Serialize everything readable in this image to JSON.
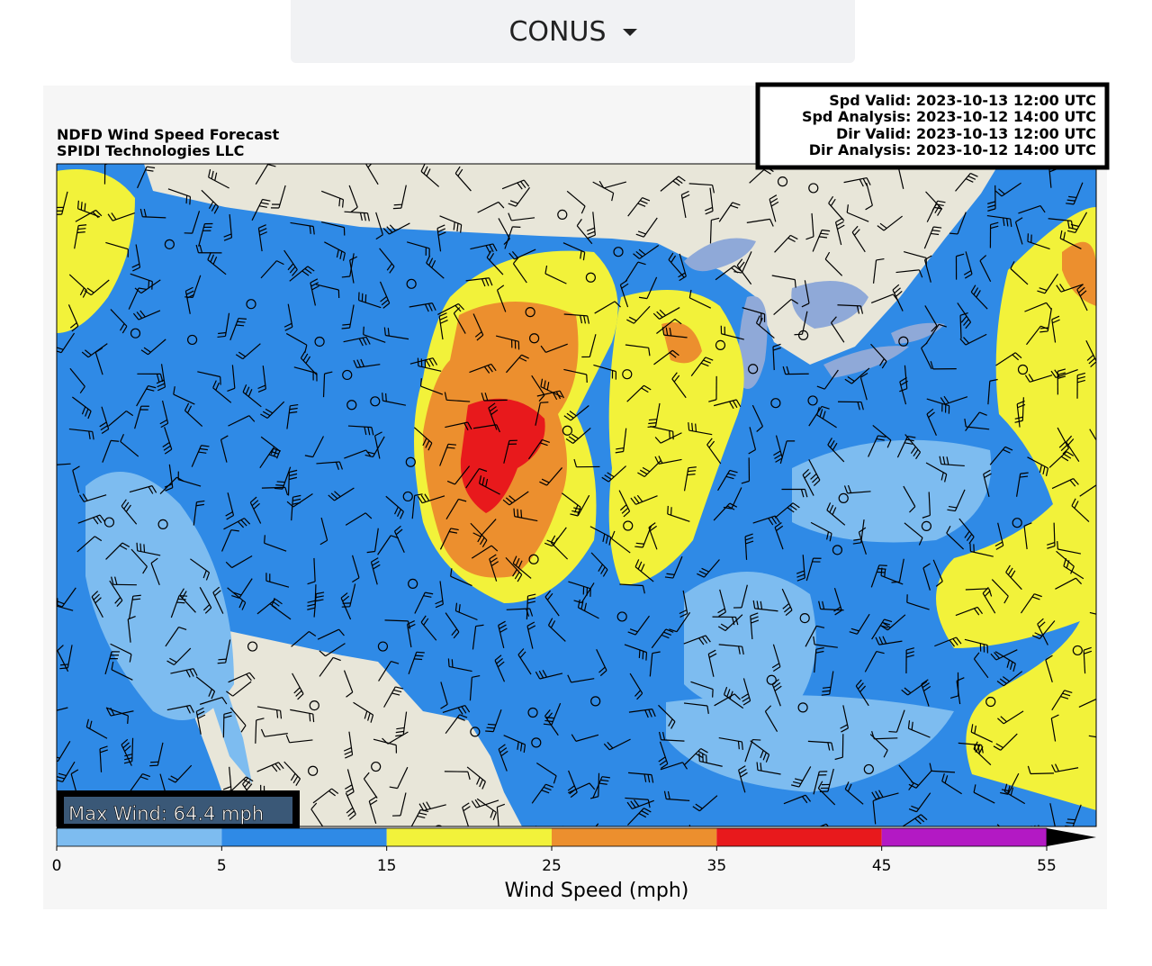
{
  "dropdown": {
    "label": "CONUS"
  },
  "map": {
    "title": [
      "NDFD Wind Speed Forecast",
      "SPIDI Technologies LLC"
    ],
    "valid_info": [
      "Spd Valid: 2023-10-13 12:00 UTC",
      "Spd Analysis: 2023-10-12 14:00 UTC",
      "Dir Valid: 2023-10-13 12:00 UTC",
      "Dir Analysis: 2023-10-12 14:00 UTC"
    ],
    "max_wind": "Max Wind: 64.4 mph"
  },
  "colorbar": {
    "ticks": [
      0,
      5,
      15,
      25,
      35,
      45,
      55
    ],
    "colors": [
      "#7dbcf0",
      "#2f8ae6",
      "#f2f23a",
      "#ec8f2e",
      "#e8191c",
      "#b319c4"
    ],
    "extend_color": "#000000",
    "label": "Wind Speed (mph)"
  }
}
